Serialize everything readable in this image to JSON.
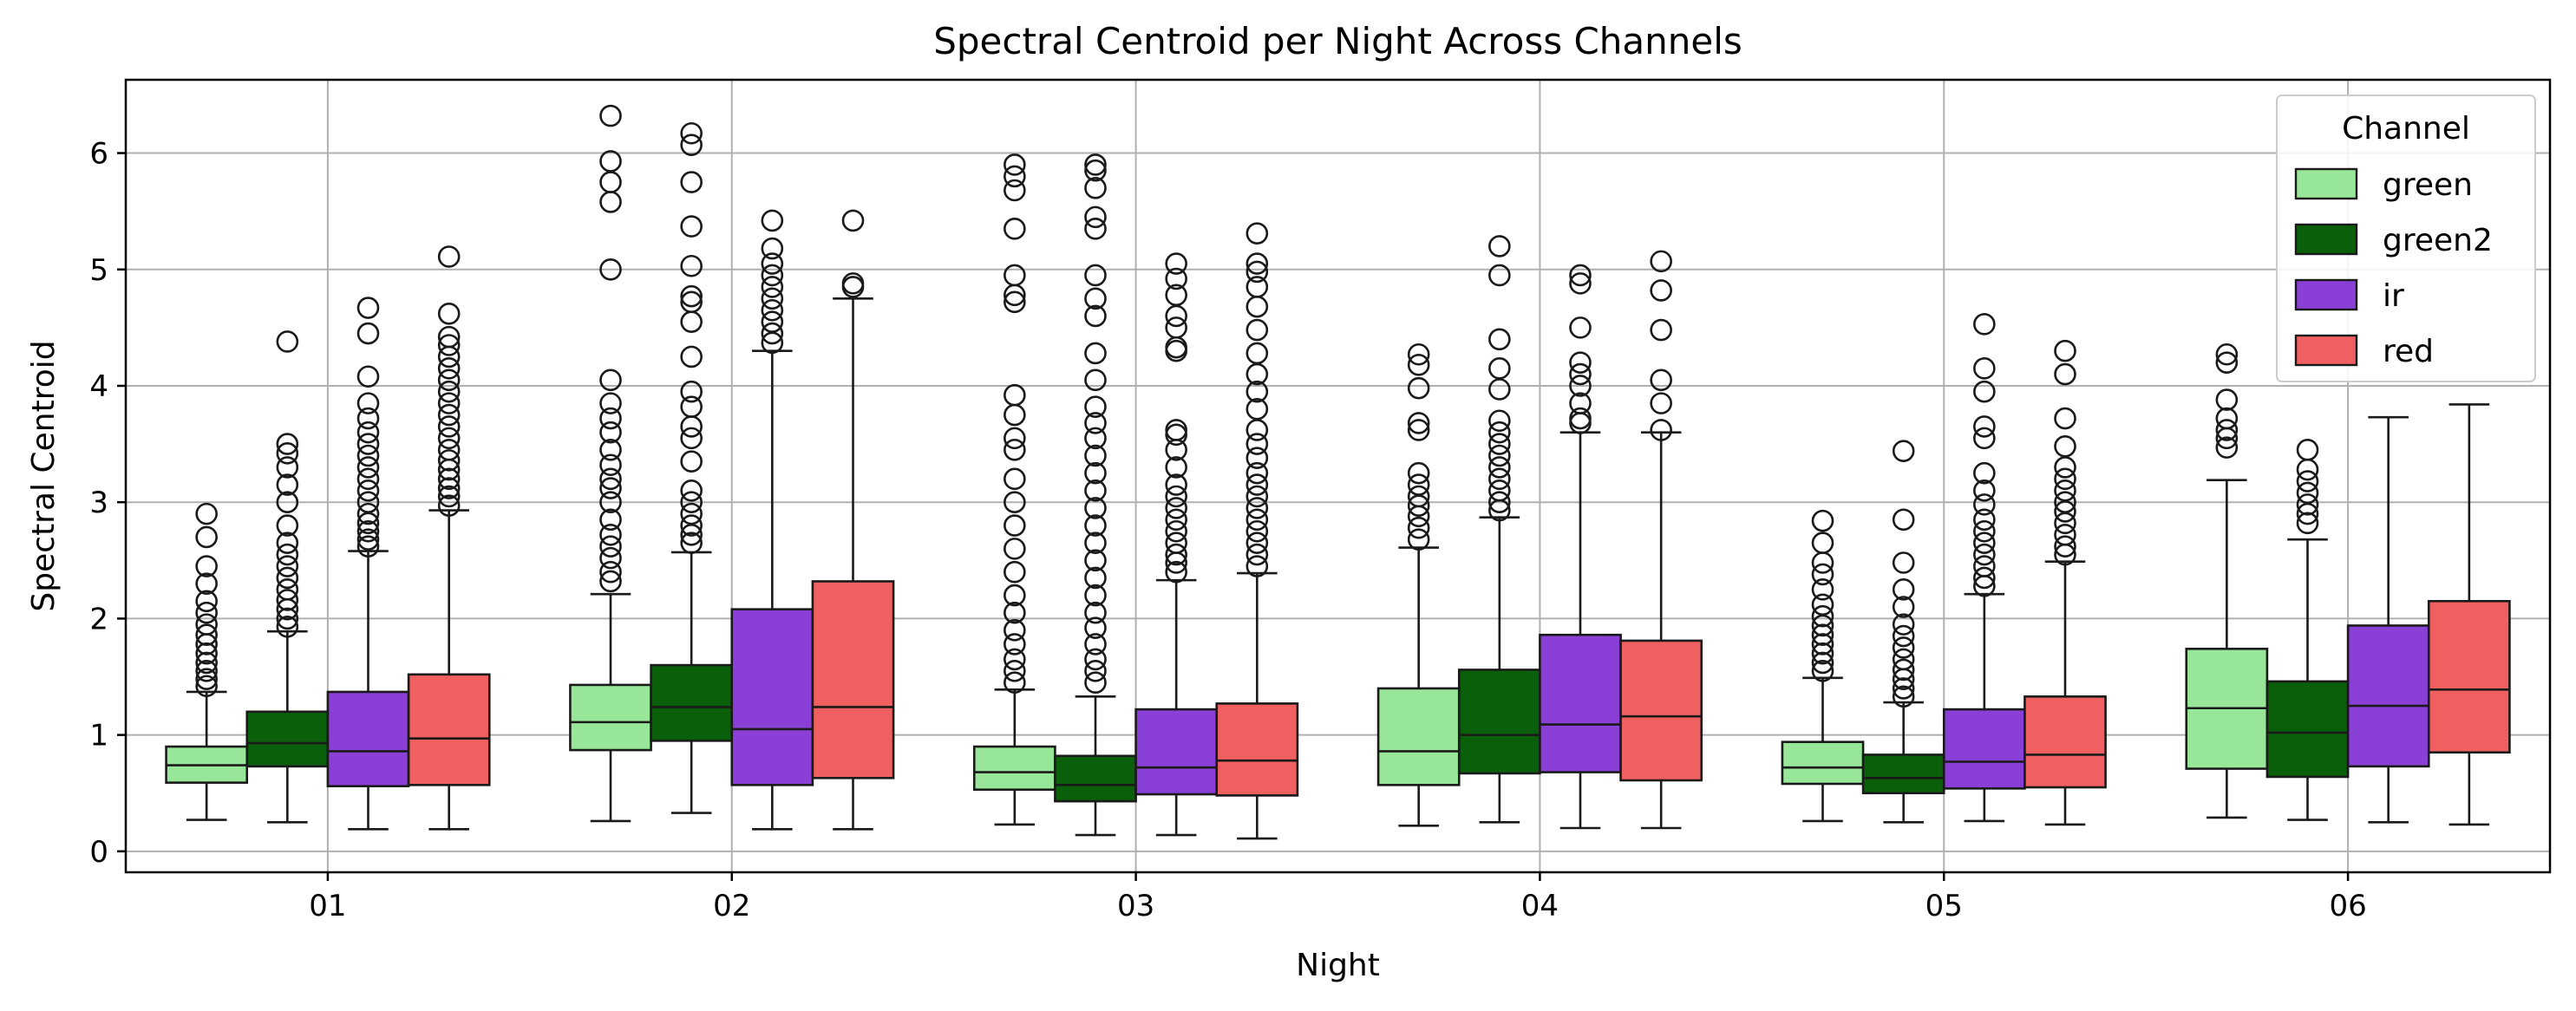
{
  "chart_data": {
    "type": "box",
    "title": "Spectral Centroid per Night Across Channels",
    "xlabel": "Night",
    "ylabel": "Spectral Centroid",
    "ylim": [
      -0.18,
      6.63
    ],
    "yticks": [
      0,
      1,
      2,
      3,
      4,
      5,
      6
    ],
    "categories": [
      "01",
      "02",
      "03",
      "04",
      "05",
      "06"
    ],
    "grid": true,
    "legend": {
      "title": "Channel",
      "placement": "top-right"
    },
    "series": [
      {
        "name": "green",
        "color": "#98e698",
        "boxes": [
          {
            "whislo": 0.27,
            "q1": 0.59,
            "med": 0.74,
            "q3": 0.9,
            "whishi": 1.37,
            "fliers": [
              1.42,
              1.48,
              1.55,
              1.62,
              1.7,
              1.78,
              1.86,
              1.95,
              2.05,
              2.15,
              2.3,
              2.45,
              2.7,
              2.9
            ]
          },
          {
            "whislo": 0.26,
            "q1": 0.87,
            "med": 1.11,
            "q3": 1.43,
            "whishi": 2.21,
            "fliers": [
              2.32,
              2.4,
              2.52,
              2.62,
              2.72,
              2.85,
              3.0,
              3.12,
              3.2,
              3.32,
              3.45,
              3.6,
              3.72,
              3.85,
              4.05,
              5.0,
              5.58,
              5.75,
              5.93,
              6.32
            ]
          },
          {
            "whislo": 0.23,
            "q1": 0.53,
            "med": 0.68,
            "q3": 0.9,
            "whishi": 1.39,
            "fliers": [
              1.45,
              1.55,
              1.65,
              1.78,
              1.9,
              2.05,
              2.2,
              2.4,
              2.6,
              2.8,
              3.0,
              3.2,
              3.45,
              3.55,
              3.75,
              3.92,
              4.72,
              4.78,
              4.95,
              5.35,
              5.68,
              5.8,
              5.9
            ]
          },
          {
            "whislo": 0.22,
            "q1": 0.57,
            "med": 0.86,
            "q3": 1.4,
            "whishi": 2.61,
            "fliers": [
              2.68,
              2.78,
              2.88,
              2.97,
              3.05,
              3.15,
              3.25,
              3.62,
              3.68,
              3.98,
              4.18,
              4.27
            ]
          },
          {
            "whislo": 0.26,
            "q1": 0.58,
            "med": 0.72,
            "q3": 0.94,
            "whishi": 1.49,
            "fliers": [
              1.55,
              1.62,
              1.7,
              1.78,
              1.86,
              1.94,
              2.02,
              2.12,
              2.25,
              2.38,
              2.48,
              2.65,
              2.84
            ]
          },
          {
            "whislo": 0.29,
            "q1": 0.71,
            "med": 1.23,
            "q3": 1.74,
            "whishi": 3.19,
            "fliers": [
              3.47,
              3.55,
              3.62,
              3.72,
              3.88,
              4.2,
              4.27
            ]
          }
        ]
      },
      {
        "name": "green2",
        "color": "#0a5f0a",
        "boxes": [
          {
            "whislo": 0.25,
            "q1": 0.73,
            "med": 0.93,
            "q3": 1.2,
            "whishi": 1.89,
            "fliers": [
              1.93,
              2.0,
              2.08,
              2.16,
              2.25,
              2.35,
              2.45,
              2.55,
              2.65,
              2.8,
              3.0,
              3.15,
              3.3,
              3.42,
              3.5,
              4.38
            ]
          },
          {
            "whislo": 0.33,
            "q1": 0.95,
            "med": 1.24,
            "q3": 1.6,
            "whishi": 2.57,
            "fliers": [
              2.65,
              2.72,
              2.8,
              2.9,
              3.0,
              3.1,
              3.35,
              3.55,
              3.65,
              3.82,
              3.95,
              4.25,
              4.55,
              4.72,
              4.77,
              5.03,
              5.37,
              5.75,
              6.07,
              6.17
            ]
          },
          {
            "whislo": 0.14,
            "q1": 0.43,
            "med": 0.57,
            "q3": 0.82,
            "whishi": 1.33,
            "fliers": [
              1.45,
              1.55,
              1.65,
              1.78,
              1.92,
              2.05,
              2.2,
              2.35,
              2.5,
              2.65,
              2.8,
              2.95,
              3.1,
              3.25,
              3.4,
              3.55,
              3.68,
              3.82,
              4.05,
              4.28,
              4.6,
              4.75,
              4.95,
              5.35,
              5.45,
              5.7,
              5.85,
              5.9
            ]
          },
          {
            "whislo": 0.25,
            "q1": 0.67,
            "med": 1.0,
            "q3": 1.56,
            "whishi": 2.87,
            "fliers": [
              2.93,
              3.0,
              3.1,
              3.2,
              3.3,
              3.4,
              3.5,
              3.6,
              3.7,
              3.97,
              4.15,
              4.4,
              4.95,
              5.2
            ]
          },
          {
            "whislo": 0.25,
            "q1": 0.5,
            "med": 0.63,
            "q3": 0.83,
            "whishi": 1.28,
            "fliers": [
              1.33,
              1.4,
              1.48,
              1.56,
              1.65,
              1.75,
              1.85,
              1.95,
              2.1,
              2.25,
              2.48,
              2.85,
              3.44
            ]
          },
          {
            "whislo": 0.27,
            "q1": 0.64,
            "med": 1.02,
            "q3": 1.46,
            "whishi": 2.68,
            "fliers": [
              2.82,
              2.9,
              2.98,
              3.08,
              3.18,
              3.28,
              3.45
            ]
          }
        ]
      },
      {
        "name": "ir",
        "color": "#8a3fd6",
        "boxes": [
          {
            "whislo": 0.19,
            "q1": 0.56,
            "med": 0.86,
            "q3": 1.37,
            "whishi": 2.58,
            "fliers": [
              2.62,
              2.68,
              2.75,
              2.82,
              2.9,
              3.0,
              3.1,
              3.2,
              3.3,
              3.4,
              3.5,
              3.6,
              3.72,
              3.85,
              4.08,
              4.45,
              4.67
            ]
          },
          {
            "whislo": 0.19,
            "q1": 0.57,
            "med": 1.05,
            "q3": 2.08,
            "whishi": 4.3,
            "fliers": [
              4.37,
              4.45,
              4.55,
              4.65,
              4.75,
              4.85,
              4.95,
              5.05,
              5.18,
              5.42
            ]
          },
          {
            "whislo": 0.14,
            "q1": 0.49,
            "med": 0.72,
            "q3": 1.22,
            "whishi": 2.33,
            "fliers": [
              2.4,
              2.48,
              2.55,
              2.65,
              2.75,
              2.85,
              2.95,
              3.05,
              3.15,
              3.3,
              3.45,
              3.58,
              3.62,
              4.3,
              4.33,
              4.5,
              4.6,
              4.78,
              4.92,
              5.05
            ]
          },
          {
            "whislo": 0.2,
            "q1": 0.68,
            "med": 1.09,
            "q3": 1.86,
            "whishi": 3.6,
            "fliers": [
              3.68,
              3.72,
              3.85,
              4.0,
              4.1,
              4.2,
              4.5,
              4.88,
              4.95
            ]
          },
          {
            "whislo": 0.26,
            "q1": 0.54,
            "med": 0.77,
            "q3": 1.22,
            "whishi": 2.21,
            "fliers": [
              2.28,
              2.35,
              2.45,
              2.55,
              2.65,
              2.75,
              2.85,
              2.98,
              3.1,
              3.25,
              3.55,
              3.65,
              3.95,
              4.15,
              4.53
            ]
          },
          {
            "whislo": 0.25,
            "q1": 0.73,
            "med": 1.25,
            "q3": 1.94,
            "whishi": 3.73,
            "fliers": []
          }
        ]
      },
      {
        "name": "red",
        "color": "#f06060",
        "boxes": [
          {
            "whislo": 0.19,
            "q1": 0.57,
            "med": 0.97,
            "q3": 1.52,
            "whishi": 2.93,
            "fliers": [
              2.97,
              3.05,
              3.12,
              3.2,
              3.28,
              3.36,
              3.45,
              3.55,
              3.65,
              3.75,
              3.85,
              3.95,
              4.05,
              4.15,
              4.25,
              4.35,
              4.42,
              4.62,
              5.11
            ]
          },
          {
            "whislo": 0.19,
            "q1": 0.63,
            "med": 1.24,
            "q3": 2.32,
            "whishi": 4.75,
            "fliers": [
              4.85,
              4.88,
              5.42
            ]
          },
          {
            "whislo": 0.11,
            "q1": 0.48,
            "med": 0.78,
            "q3": 1.27,
            "whishi": 2.39,
            "fliers": [
              2.45,
              2.55,
              2.65,
              2.75,
              2.85,
              2.95,
              3.05,
              3.15,
              3.25,
              3.38,
              3.5,
              3.62,
              3.8,
              3.95,
              4.1,
              4.28,
              4.48,
              4.68,
              4.85,
              4.98,
              5.05,
              5.31
            ]
          },
          {
            "whislo": 0.2,
            "q1": 0.61,
            "med": 1.16,
            "q3": 1.81,
            "whishi": 3.6,
            "fliers": [
              3.62,
              3.85,
              4.05,
              4.48,
              4.82,
              5.07
            ]
          },
          {
            "whislo": 0.23,
            "q1": 0.55,
            "med": 0.83,
            "q3": 1.33,
            "whishi": 2.49,
            "fliers": [
              2.55,
              2.62,
              2.72,
              2.82,
              2.92,
              3.0,
              3.1,
              3.2,
              3.3,
              3.48,
              3.72,
              4.1,
              4.3
            ]
          },
          {
            "whislo": 0.23,
            "q1": 0.85,
            "med": 1.39,
            "q3": 2.15,
            "whishi": 3.84,
            "fliers": []
          }
        ]
      }
    ]
  }
}
